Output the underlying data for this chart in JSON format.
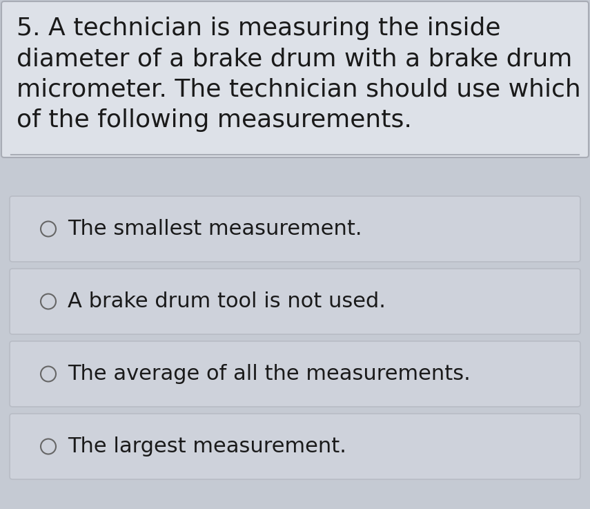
{
  "question_number": "5.",
  "question_text": "A technician is measuring the inside\ndiameter of a brake drum with a brake drum\nmicrometer. The technician should use which\nof the following measurements.",
  "options": [
    "The smallest measurement.",
    "A brake drum tool is not used.",
    "The average of all the measurements.",
    "The largest measurement."
  ],
  "bg_color": "#c5cad3",
  "question_box_color": "#dde1e8",
  "option_box_color": "#ced2db",
  "option_box_border_color": "#b8bcc5",
  "question_box_border_color": "#a8acb5",
  "text_color": "#1a1a1a",
  "question_fontsize": 26,
  "option_fontsize": 22,
  "fig_width": 8.55,
  "fig_height": 7.37,
  "dpi": 100
}
